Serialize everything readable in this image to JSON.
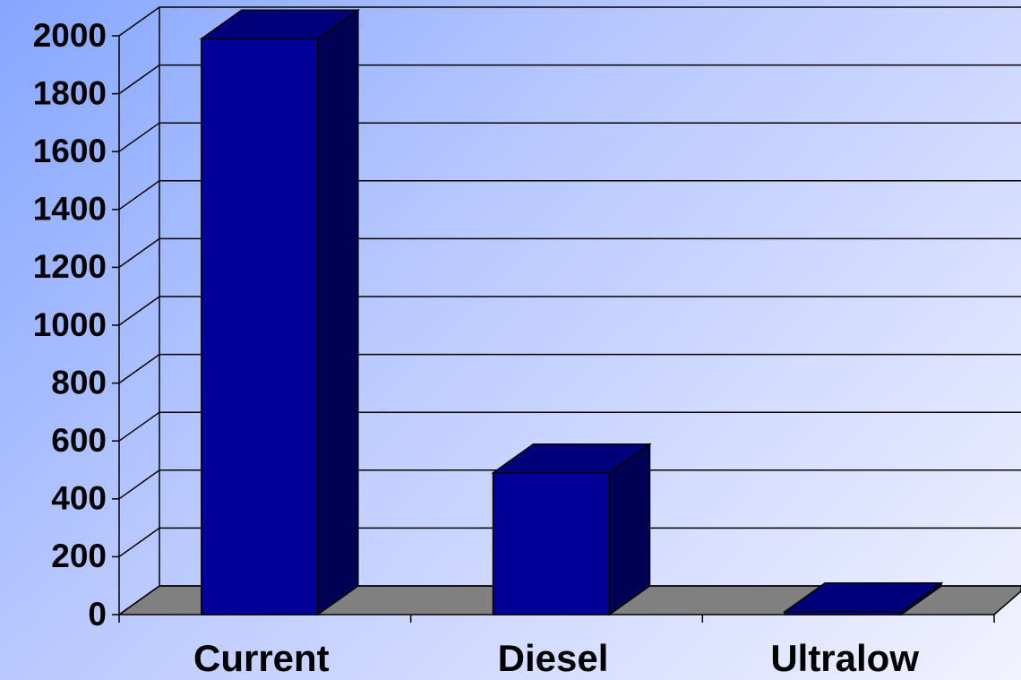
{
  "chart_data": {
    "type": "bar3d",
    "categories": [
      "Current",
      "Diesel",
      "Ultralow"
    ],
    "values": [
      1990,
      490,
      10
    ],
    "color": "#000099",
    "ylim": [
      0,
      2000
    ],
    "yticks": [
      0,
      200,
      400,
      600,
      800,
      1000,
      1200,
      1400,
      1600,
      1800,
      2000
    ],
    "grid": true
  }
}
